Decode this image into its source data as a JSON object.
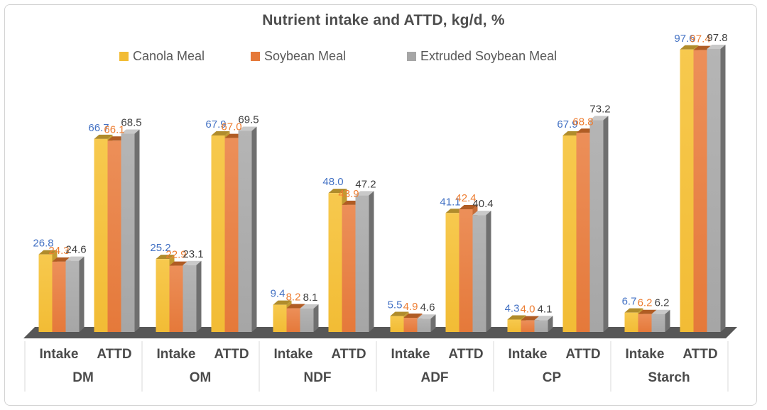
{
  "chart_data": {
    "type": "bar",
    "title": "Nutrient intake and ATTD, kg/d, %",
    "xlabel": "",
    "ylabel": "",
    "ylim": [
      0,
      100
    ],
    "grid": false,
    "legend_position": "top",
    "value_label_decimals": 1,
    "axis_sub_labels": [
      "Intake",
      "ATTD"
    ],
    "series": [
      {
        "name": "Canola Meal",
        "color_top": "#F7C94E",
        "color_bottom": "#F2BC35",
        "top_face_color": "#B08C2C",
        "side_face_color": "#C29A31",
        "label_color": "#4472C4"
      },
      {
        "name": "Soybean Meal",
        "color_top": "#EC8F59",
        "color_bottom": "#E5793A",
        "top_face_color": "#B05C24",
        "side_face_color": "#C76D38",
        "label_color": "#ED7D31"
      },
      {
        "name": "Extruded Soybean Meal",
        "color_top": "#B5B5B5",
        "color_bottom": "#A6A6A6",
        "top_face_color": "#C9C9C9",
        "side_face_color": "#6F6F6F",
        "label_color": "#404040"
      }
    ],
    "groups": [
      {
        "label": "DM",
        "Intake": [
          26.8,
          24.3,
          24.6
        ],
        "ATTD": [
          66.7,
          66.1,
          68.5
        ]
      },
      {
        "label": "OM",
        "Intake": [
          25.2,
          22.9,
          23.1
        ],
        "ATTD": [
          67.9,
          67.0,
          69.5
        ]
      },
      {
        "label": "NDF",
        "Intake": [
          9.4,
          8.2,
          8.1
        ],
        "ATTD": [
          48.0,
          43.9,
          47.2
        ]
      },
      {
        "label": "ADF",
        "Intake": [
          5.5,
          4.9,
          4.6
        ],
        "ATTD": [
          41.1,
          42.4,
          40.4
        ]
      },
      {
        "label": "CP",
        "Intake": [
          4.3,
          4.0,
          4.1
        ],
        "ATTD": [
          67.9,
          68.8,
          73.2
        ]
      },
      {
        "label": "Starch",
        "Intake": [
          6.7,
          6.2,
          6.2
        ],
        "ATTD": [
          97.6,
          97.4,
          97.8
        ]
      }
    ],
    "colors": {
      "floor": "#575757",
      "axis_text": "#4a4a4a",
      "divider": "#d9d9d9",
      "title_text": "#4d4d4d",
      "legend_text": "#595959"
    }
  }
}
